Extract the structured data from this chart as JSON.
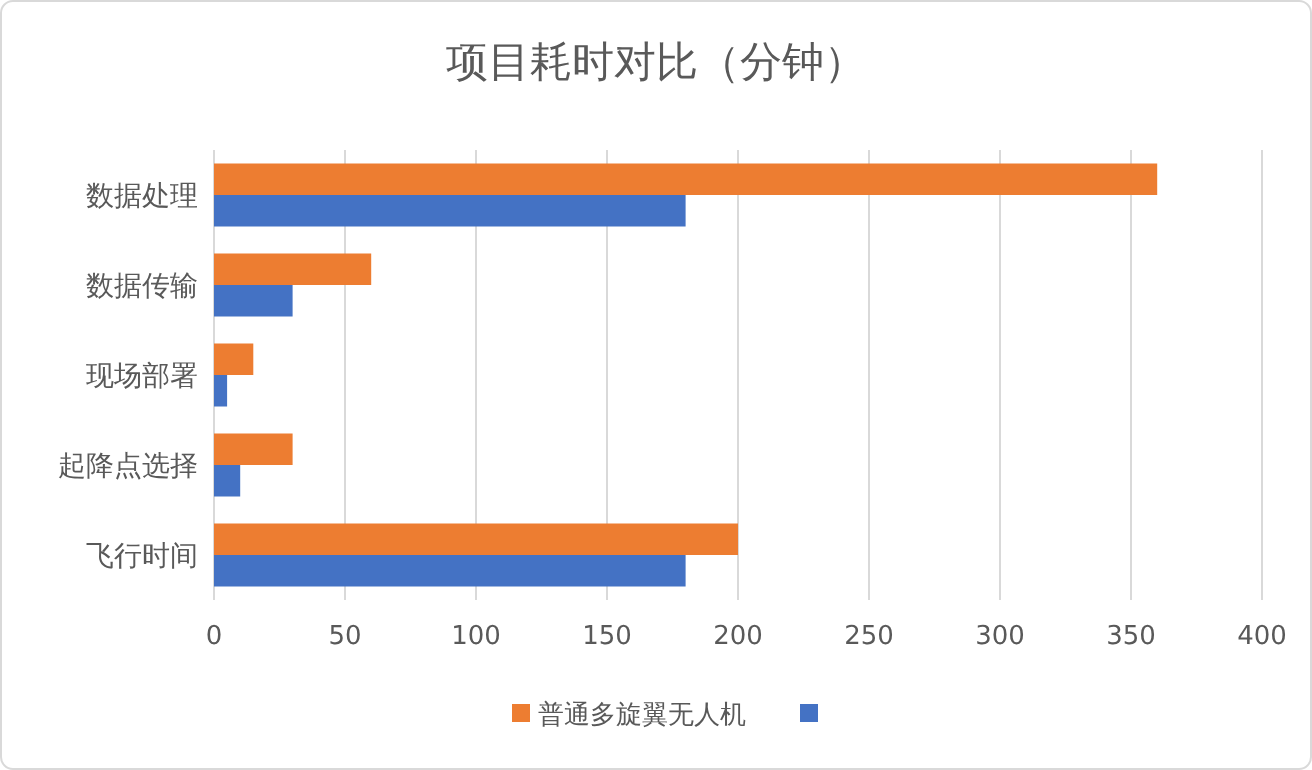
{
  "chart_data": {
    "type": "bar",
    "orientation": "horizontal",
    "title": "项目耗时对比（分钟）",
    "categories": [
      "数据处理",
      "数据传输",
      "现场部署",
      "起降点选择",
      "飞行时间"
    ],
    "series": [
      {
        "name": "普通多旋翼无人机",
        "color": "#ed7d31",
        "values": [
          360,
          60,
          15,
          30,
          200
        ]
      },
      {
        "color": "#4472c4",
        "values": [
          180,
          30,
          5,
          10,
          180
        ]
      }
    ],
    "xlim": [
      0,
      400
    ],
    "xticks": [
      0,
      50,
      100,
      150,
      200,
      250,
      300,
      350,
      400
    ],
    "grid": "x",
    "legend": "bottom"
  }
}
